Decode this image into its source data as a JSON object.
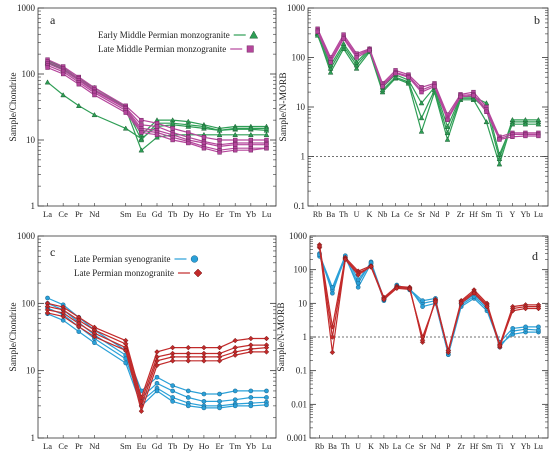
{
  "chart_data": [
    {
      "panel": "a",
      "type": "line",
      "ylabel": "Sample/Chondrite",
      "yscale": "log",
      "ylim": [
        1,
        1000
      ],
      "yticks": [
        1,
        10,
        100,
        1000
      ],
      "categories": [
        "La",
        "Ce",
        "Pr",
        "Nd",
        "Sm",
        "Eu",
        "Gd",
        "Tb",
        "Dy",
        "Ho",
        "Er",
        "Tm",
        "Yb",
        "Lu"
      ],
      "legend": "top-right",
      "series": [
        {
          "name": "Early Middle Permian monzogranite",
          "color": "#2e9e55",
          "marker": "triangle",
          "values": [
            [
              75,
              48,
              33,
              24,
              15,
              10.5,
              16,
              17,
              16,
              15,
              14,
              14.5,
              14.5,
              14
            ],
            [
              145,
              115,
              80,
              56,
              30,
              7,
              11,
              12,
              12,
              12,
              12,
              12,
              12,
              12
            ],
            [
              160,
              125,
              85,
              62,
              32,
              12,
              20,
              20,
              19,
              17,
              15,
              16,
              16,
              16
            ],
            [
              150,
              118,
              82,
              58,
              31,
              10,
              18,
              18,
              17,
              16,
              14,
              15,
              15,
              15
            ]
          ]
        },
        {
          "name": "Late Middle Permian monzogranite",
          "color": "#b5469c",
          "marker": "square",
          "values": [
            [
              165,
              130,
              90,
              62,
              33,
              20,
              18,
              15,
              13,
              11,
              10,
              10,
              10,
              10
            ],
            [
              155,
              122,
              85,
              58,
              31,
              17,
              16,
              13,
              11,
              9.5,
              8.5,
              9,
              9,
              9
            ],
            [
              145,
              115,
              80,
              55,
              30,
              15,
              14,
              12,
              10,
              9,
              8,
              8.5,
              8.5,
              8.5
            ],
            [
              135,
              108,
              75,
              52,
              28,
              14,
              13,
              11,
              9.5,
              8,
              7,
              7.5,
              7.5,
              7.5
            ],
            [
              125,
              100,
              70,
              48,
              26,
              13,
              12,
              10,
              9,
              7.5,
              6.5,
              7,
              7,
              7.5
            ]
          ]
        }
      ]
    },
    {
      "panel": "b",
      "type": "line",
      "ylabel": "Sample/N-MORB",
      "yscale": "log",
      "ylim": [
        0.1,
        1000
      ],
      "yticks": [
        0.1,
        1,
        10,
        100,
        1000
      ],
      "reference_line": 1,
      "categories": [
        "Rb",
        "Ba",
        "Th",
        "U",
        "K",
        "Nb",
        "La",
        "Ce",
        "Sr",
        "Nd",
        "P",
        "Zr",
        "Hf",
        "Sm",
        "Ti",
        "Y",
        "Yb",
        "Lu"
      ],
      "series": [
        {
          "name": "Early Middle Permian monzogranite",
          "color": "#2e9e55",
          "marker": "triangle",
          "values": [
            [
              300,
              50,
              150,
              60,
              130,
              20,
              38,
              30,
              3.2,
              20,
              2.2,
              14,
              14,
              5,
              0.7,
              5,
              5,
              5
            ],
            [
              280,
              60,
              170,
              70,
              140,
              22,
              40,
              32,
              6,
              22,
              3,
              15,
              15,
              9,
              0.9,
              5.5,
              5.5,
              5.5
            ],
            [
              320,
              70,
              190,
              80,
              150,
              25,
              45,
              35,
              12,
              25,
              4,
              16,
              16,
              12,
              1.1,
              4.5,
              4.5,
              4.5
            ]
          ]
        },
        {
          "name": "Late Middle Permian monzogranite",
          "color": "#b5469c",
          "marker": "square",
          "values": [
            [
              380,
              100,
              290,
              120,
              150,
              30,
              55,
              45,
              25,
              30,
              7,
              18,
              20,
              10,
              2.5,
              3,
              3,
              3
            ],
            [
              350,
              90,
              260,
              110,
              145,
              28,
              50,
              42,
              22,
              28,
              6,
              17,
              18,
              9,
              2.3,
              2.8,
              2.8,
              2.8
            ],
            [
              330,
              80,
              240,
              100,
              140,
              26,
              48,
              40,
              20,
              26,
              5.5,
              16,
              17,
              8,
              2.2,
              2.5,
              2.6,
              2.6
            ]
          ]
        }
      ]
    },
    {
      "panel": "c",
      "type": "line",
      "ylabel": "Sample/Chondrite",
      "yscale": "log",
      "ylim": [
        1,
        1000
      ],
      "yticks": [
        1,
        10,
        100,
        1000
      ],
      "categories": [
        "La",
        "Ce",
        "Pr",
        "Nd",
        "Sm",
        "Eu",
        "Gd",
        "Tb",
        "Dy",
        "Ho",
        "Er",
        "Tm",
        "Yb",
        "Lu"
      ],
      "legend": "top-left",
      "series": [
        {
          "name": "Late Permian syenogranite",
          "color": "#2aa0d8",
          "marker": "circle",
          "values": [
            [
              120,
              95,
              62,
              40,
              20,
              5,
              8,
              6,
              5,
              4.5,
              4.5,
              5,
              5,
              5
            ],
            [
              100,
              80,
              52,
              34,
              17,
              4,
              6.5,
              5,
              4,
              3.5,
              3.5,
              3.7,
              4,
              4
            ],
            [
              85,
              68,
              45,
              30,
              15,
              3.5,
              5.5,
              4,
              3.3,
              3,
              3,
              3.2,
              3.3,
              3.4
            ],
            [
              70,
              56,
              38,
              26,
              13,
              3,
              5,
              3.5,
              3,
              2.8,
              2.8,
              3,
              3,
              3.1
            ]
          ]
        },
        {
          "name": "Late Permian monzogranite",
          "color": "#c22a2a",
          "marker": "diamond",
          "values": [
            [
              100,
              88,
              62,
              44,
              28,
              4,
              19,
              22,
              22,
              22,
              22,
              28,
              30,
              30
            ],
            [
              90,
              80,
              56,
              40,
              25,
              3.5,
              16,
              18,
              18,
              18,
              18,
              22,
              24,
              24
            ],
            [
              80,
              72,
              50,
              36,
              22,
              3,
              14,
              16,
              16,
              16,
              16,
              19,
              21,
              22
            ],
            [
              72,
              64,
              45,
              32,
              20,
              2.5,
              12,
              14,
              14,
              14,
              14,
              17,
              19,
              19
            ]
          ]
        }
      ]
    },
    {
      "panel": "d",
      "type": "line",
      "ylabel": "Sample/N-MORB",
      "yscale": "log",
      "ylim": [
        0.001,
        1000
      ],
      "yticks": [
        0.001,
        0.01,
        0.1,
        1,
        10,
        100,
        1000
      ],
      "reference_line": 1,
      "categories": [
        "Rb",
        "Ba",
        "Th",
        "U",
        "K",
        "Nb",
        "La",
        "Ce",
        "Sr",
        "Nd",
        "P",
        "Zr",
        "Hf",
        "Sm",
        "Ti",
        "Y",
        "Yb",
        "Lu"
      ],
      "series": [
        {
          "name": "Late Permian syenogranite",
          "color": "#2aa0d8",
          "marker": "circle",
          "values": [
            [
              300,
              20,
              250,
              30,
              150,
              12,
              35,
              25,
              10,
              12,
              0.3,
              8,
              14,
              6,
              0.6,
              1.2,
              1.4,
              1.4
            ],
            [
              250,
              25,
              220,
              40,
              170,
              14,
              30,
              28,
              8,
              10,
              0.3,
              10,
              18,
              8,
              0.5,
              1.5,
              1.7,
              1.6
            ],
            [
              280,
              30,
              260,
              50,
              160,
              13,
              33,
              26,
              12,
              14,
              0.35,
              9,
              16,
              7,
              0.7,
              1.8,
              2,
              2
            ]
          ]
        },
        {
          "name": "Late Permian monzogranite",
          "color": "#c22a2a",
          "marker": "diamond",
          "values": [
            [
              550,
              2,
              230,
              90,
              130,
              15,
              32,
              30,
              0.7,
              13,
              0.4,
              12,
              25,
              10,
              0.6,
              8,
              9,
              9
            ],
            [
              450,
              1,
              210,
              80,
              120,
              14,
              30,
              28,
              0.8,
              12,
              0.35,
              11,
              22,
              9,
              0.5,
              7,
              8,
              8
            ],
            [
              500,
              0.35,
              200,
              70,
              125,
              13,
              28,
              26,
              1,
              11,
              0.4,
              10,
              20,
              8,
              0.55,
              6,
              7,
              7
            ]
          ]
        }
      ]
    }
  ]
}
